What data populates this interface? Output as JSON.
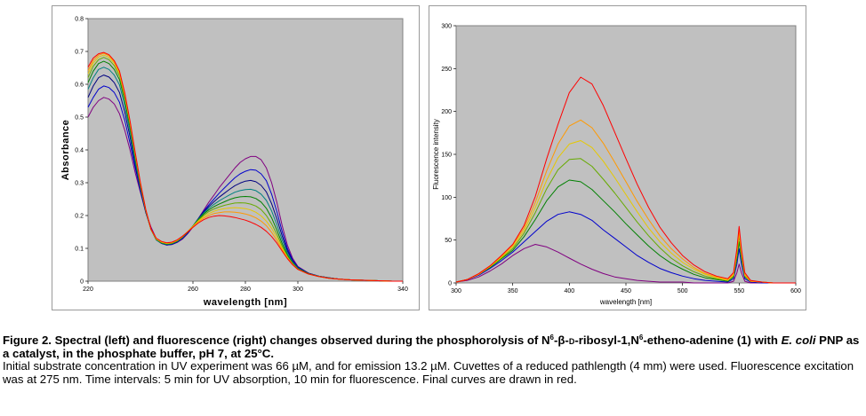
{
  "caption": {
    "title_part1": "Figure 2. Spectral (left) and fluorescence (right) changes observed during the phosphorolysis of N",
    "title_sup1": "6",
    "title_part2": "-β-",
    "title_d": "d",
    "title_part3": "-ribosyl-1,N",
    "title_sup2": "6",
    "title_part4": "-etheno-adenine (1) with ",
    "title_italic": "E. coli",
    "title_part5": " PNP as a catalyst, in the phosphate buffer, pH 7, at 25°C.",
    "body": "Initial substrate concentration in UV experiment was 66 µM, and for emission 13.2 µM. Cuvettes of a reduced pathlength (4 mm) were used. Fluorescence excitation was at 275 nm. Time intervals: 5 min for UV absorption, 10 min for fluorescence. Final curves are drawn in red."
  },
  "colors": {
    "plot_background": "#c0c0c0",
    "first_curve": "#800080",
    "final_curve": "#ff0000"
  },
  "chart_data": [
    {
      "type": "line",
      "title": "",
      "xlabel": "wavelength [nm]",
      "ylabel": "Absorbance",
      "xlim": [
        220,
        340
      ],
      "ylim": [
        0,
        0.8
      ],
      "x_ticks": [
        "220",
        "260",
        "280",
        "300",
        "340"
      ],
      "y_ticks": [
        "0",
        "0.1",
        "0.2",
        "0.3",
        "0.4",
        "0.5",
        "0.6",
        "0.7",
        "0.8"
      ],
      "grid": false,
      "legend": "none",
      "x": [
        220,
        222,
        224,
        226,
        228,
        230,
        232,
        234,
        236,
        238,
        240,
        242,
        244,
        246,
        248,
        250,
        252,
        254,
        256,
        258,
        260,
        262,
        264,
        266,
        268,
        270,
        272,
        274,
        276,
        278,
        280,
        282,
        284,
        286,
        288,
        290,
        292,
        294,
        296,
        298,
        300,
        304,
        308,
        312,
        316,
        320,
        324,
        328,
        332,
        336,
        340
      ],
      "series": [
        {
          "color": "#800080",
          "values": [
            0.5,
            0.53,
            0.55,
            0.56,
            0.555,
            0.54,
            0.51,
            0.46,
            0.4,
            0.33,
            0.27,
            0.21,
            0.165,
            0.13,
            0.115,
            0.11,
            0.112,
            0.118,
            0.128,
            0.145,
            0.165,
            0.19,
            0.215,
            0.24,
            0.262,
            0.285,
            0.305,
            0.325,
            0.345,
            0.362,
            0.373,
            0.38,
            0.38,
            0.37,
            0.345,
            0.3,
            0.24,
            0.17,
            0.11,
            0.07,
            0.045,
            0.025,
            0.015,
            0.01,
            0.006,
            0.004,
            0.003,
            0.002,
            0.001,
            0.0,
            0.0
          ]
        },
        {
          "color": "#0000cc",
          "values": [
            0.53,
            0.56,
            0.585,
            0.595,
            0.59,
            0.575,
            0.545,
            0.49,
            0.42,
            0.345,
            0.275,
            0.21,
            0.16,
            0.128,
            0.115,
            0.11,
            0.112,
            0.119,
            0.13,
            0.146,
            0.167,
            0.19,
            0.212,
            0.232,
            0.25,
            0.268,
            0.284,
            0.3,
            0.315,
            0.327,
            0.335,
            0.34,
            0.338,
            0.327,
            0.306,
            0.265,
            0.212,
            0.152,
            0.1,
            0.065,
            0.043,
            0.024,
            0.015,
            0.01,
            0.006,
            0.004,
            0.003,
            0.002,
            0.001,
            0.0,
            0.0
          ]
        },
        {
          "color": "#000080",
          "values": [
            0.56,
            0.595,
            0.62,
            0.628,
            0.622,
            0.605,
            0.575,
            0.515,
            0.44,
            0.355,
            0.28,
            0.21,
            0.158,
            0.126,
            0.115,
            0.111,
            0.113,
            0.12,
            0.132,
            0.148,
            0.168,
            0.19,
            0.21,
            0.227,
            0.242,
            0.256,
            0.268,
            0.28,
            0.291,
            0.299,
            0.305,
            0.307,
            0.303,
            0.292,
            0.272,
            0.236,
            0.19,
            0.138,
            0.093,
            0.062,
            0.042,
            0.024,
            0.015,
            0.01,
            0.006,
            0.004,
            0.003,
            0.002,
            0.001,
            0.0,
            0.0
          ]
        },
        {
          "color": "#008080",
          "values": [
            0.585,
            0.62,
            0.645,
            0.652,
            0.645,
            0.628,
            0.598,
            0.535,
            0.455,
            0.365,
            0.285,
            0.213,
            0.157,
            0.126,
            0.116,
            0.112,
            0.114,
            0.121,
            0.133,
            0.149,
            0.168,
            0.189,
            0.207,
            0.222,
            0.234,
            0.245,
            0.254,
            0.263,
            0.271,
            0.276,
            0.279,
            0.28,
            0.276,
            0.265,
            0.246,
            0.214,
            0.172,
            0.126,
            0.086,
            0.058,
            0.04,
            0.023,
            0.015,
            0.01,
            0.006,
            0.004,
            0.003,
            0.002,
            0.001,
            0.0,
            0.0
          ]
        },
        {
          "color": "#008000",
          "values": [
            0.605,
            0.64,
            0.663,
            0.67,
            0.663,
            0.645,
            0.614,
            0.55,
            0.468,
            0.375,
            0.29,
            0.215,
            0.157,
            0.127,
            0.117,
            0.113,
            0.115,
            0.122,
            0.134,
            0.15,
            0.168,
            0.187,
            0.204,
            0.217,
            0.227,
            0.235,
            0.242,
            0.249,
            0.254,
            0.257,
            0.258,
            0.257,
            0.252,
            0.241,
            0.222,
            0.193,
            0.156,
            0.115,
            0.08,
            0.055,
            0.038,
            0.023,
            0.014,
            0.009,
            0.006,
            0.004,
            0.003,
            0.002,
            0.001,
            0.0,
            0.0
          ]
        },
        {
          "color": "#66aa00",
          "values": [
            0.62,
            0.655,
            0.675,
            0.682,
            0.675,
            0.657,
            0.625,
            0.56,
            0.477,
            0.382,
            0.293,
            0.216,
            0.157,
            0.128,
            0.118,
            0.114,
            0.116,
            0.123,
            0.135,
            0.151,
            0.168,
            0.185,
            0.2,
            0.212,
            0.22,
            0.226,
            0.231,
            0.235,
            0.238,
            0.239,
            0.238,
            0.235,
            0.229,
            0.218,
            0.2,
            0.175,
            0.143,
            0.107,
            0.076,
            0.053,
            0.037,
            0.022,
            0.014,
            0.009,
            0.006,
            0.004,
            0.003,
            0.002,
            0.001,
            0.0,
            0.0
          ]
        },
        {
          "color": "#e6c800",
          "values": [
            0.632,
            0.665,
            0.683,
            0.689,
            0.682,
            0.664,
            0.632,
            0.566,
            0.482,
            0.386,
            0.295,
            0.217,
            0.157,
            0.129,
            0.119,
            0.115,
            0.117,
            0.124,
            0.136,
            0.151,
            0.167,
            0.183,
            0.196,
            0.206,
            0.213,
            0.218,
            0.221,
            0.223,
            0.224,
            0.223,
            0.221,
            0.217,
            0.21,
            0.199,
            0.183,
            0.161,
            0.133,
            0.101,
            0.073,
            0.052,
            0.036,
            0.022,
            0.014,
            0.009,
            0.006,
            0.004,
            0.003,
            0.002,
            0.001,
            0.0,
            0.0
          ]
        },
        {
          "color": "#ff9900",
          "values": [
            0.642,
            0.673,
            0.689,
            0.694,
            0.687,
            0.669,
            0.637,
            0.57,
            0.486,
            0.389,
            0.297,
            0.218,
            0.158,
            0.13,
            0.12,
            0.116,
            0.118,
            0.125,
            0.136,
            0.151,
            0.166,
            0.18,
            0.192,
            0.2,
            0.206,
            0.209,
            0.211,
            0.211,
            0.21,
            0.208,
            0.205,
            0.2,
            0.193,
            0.183,
            0.169,
            0.149,
            0.124,
            0.096,
            0.07,
            0.051,
            0.036,
            0.022,
            0.014,
            0.009,
            0.006,
            0.004,
            0.003,
            0.002,
            0.001,
            0.0,
            0.0
          ]
        },
        {
          "color": "#ff0000",
          "values": [
            0.652,
            0.68,
            0.693,
            0.697,
            0.69,
            0.672,
            0.64,
            0.574,
            0.489,
            0.392,
            0.299,
            0.219,
            0.159,
            0.131,
            0.121,
            0.117,
            0.119,
            0.126,
            0.137,
            0.15,
            0.164,
            0.177,
            0.187,
            0.194,
            0.198,
            0.2,
            0.199,
            0.197,
            0.194,
            0.19,
            0.186,
            0.18,
            0.173,
            0.164,
            0.152,
            0.136,
            0.116,
            0.092,
            0.069,
            0.05,
            0.036,
            0.022,
            0.014,
            0.009,
            0.006,
            0.004,
            0.003,
            0.002,
            0.001,
            0.0,
            0.0
          ]
        }
      ]
    },
    {
      "type": "line",
      "title": "",
      "xlabel": "wavelength [nm]",
      "ylabel": "Fluorescence intensity",
      "xlim": [
        300,
        600
      ],
      "ylim": [
        0,
        300
      ],
      "x_ticks": [
        "300",
        "350",
        "400",
        "450",
        "500",
        "550",
        "600"
      ],
      "y_ticks": [
        "0",
        "50",
        "100",
        "150",
        "200",
        "250",
        "300"
      ],
      "grid": false,
      "legend": "none",
      "x": [
        300,
        310,
        320,
        330,
        340,
        350,
        360,
        370,
        380,
        390,
        400,
        410,
        420,
        430,
        440,
        450,
        460,
        470,
        480,
        490,
        500,
        510,
        520,
        530,
        540,
        545,
        548,
        550,
        552,
        555,
        560,
        570,
        580,
        590,
        600
      ],
      "series": [
        {
          "color": "#800080",
          "values": [
            1,
            3,
            7,
            14,
            22,
            32,
            40,
            45,
            42,
            36,
            29,
            22,
            16,
            11,
            7,
            5,
            3,
            2,
            1,
            1,
            1,
            0,
            0,
            0,
            0,
            2,
            12,
            22,
            12,
            2,
            0,
            0,
            0,
            0,
            0
          ]
        },
        {
          "color": "#0000cc",
          "values": [
            1,
            4,
            9,
            17,
            26,
            36,
            48,
            60,
            72,
            80,
            83,
            80,
            73,
            62,
            52,
            42,
            32,
            24,
            17,
            12,
            8,
            5,
            3,
            2,
            1,
            5,
            22,
            40,
            22,
            5,
            1,
            0,
            0,
            0,
            0
          ]
        },
        {
          "color": "#008000",
          "values": [
            1,
            4,
            10,
            18,
            28,
            38,
            54,
            74,
            96,
            112,
            120,
            118,
            109,
            96,
            83,
            69,
            56,
            43,
            32,
            23,
            16,
            10,
            6,
            4,
            2,
            7,
            28,
            48,
            28,
            7,
            2,
            1,
            0,
            0,
            0
          ]
        },
        {
          "color": "#66aa00",
          "values": [
            1,
            4,
            10,
            19,
            29,
            40,
            58,
            82,
            110,
            132,
            144,
            145,
            136,
            121,
            105,
            88,
            71,
            55,
            41,
            29,
            20,
            13,
            8,
            5,
            3,
            8,
            32,
            55,
            32,
            8,
            2,
            1,
            0,
            0,
            0
          ]
        },
        {
          "color": "#e6c800",
          "values": [
            1,
            4,
            10,
            19,
            30,
            42,
            61,
            88,
            120,
            146,
            162,
            166,
            158,
            142,
            123,
            103,
            83,
            64,
            48,
            35,
            24,
            16,
            10,
            6,
            3,
            9,
            35,
            58,
            35,
            9,
            2,
            1,
            0,
            0,
            0
          ]
        },
        {
          "color": "#ff9900",
          "values": [
            1,
            4,
            10,
            20,
            31,
            44,
            64,
            94,
            131,
            162,
            183,
            190,
            181,
            163,
            141,
            118,
            95,
            74,
            55,
            40,
            28,
            18,
            11,
            7,
            4,
            10,
            37,
            62,
            37,
            10,
            2,
            1,
            0,
            0,
            0
          ]
        },
        {
          "color": "#ff0000",
          "values": [
            1,
            4,
            11,
            20,
            32,
            45,
            67,
            101,
            145,
            185,
            222,
            240,
            232,
            207,
            176,
            145,
            115,
            88,
            65,
            47,
            32,
            21,
            13,
            8,
            5,
            12,
            40,
            66,
            40,
            12,
            3,
            1,
            0,
            0,
            0
          ]
        }
      ]
    }
  ]
}
